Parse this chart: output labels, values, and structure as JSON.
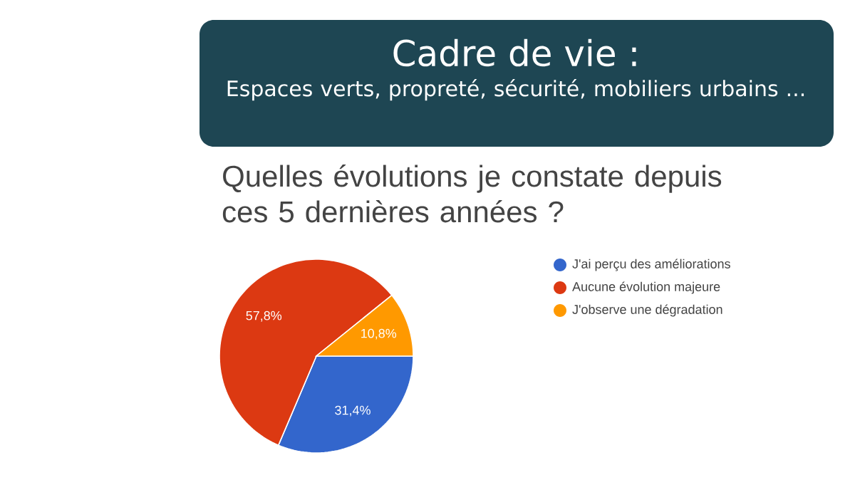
{
  "chart_data": {
    "type": "pie",
    "title": "Cadre de vie :",
    "subtitle": "Espaces verts, propreté, sécurité, mobiliers urbains ...",
    "annotations": [
      "Quelles évolutions je constate depuis ces 5 dernières années ?"
    ],
    "categories": [
      "J'ai perçu des améliorations",
      "Aucune évolution majeure",
      "J'observe une dégradation"
    ],
    "values": [
      31.4,
      57.8,
      10.8
    ],
    "colors": [
      "#3366cc",
      "#dc3912",
      "#ff9900"
    ],
    "value_labels": [
      "31,4%",
      "57,8%",
      "10,8%"
    ],
    "legend": "right"
  }
}
